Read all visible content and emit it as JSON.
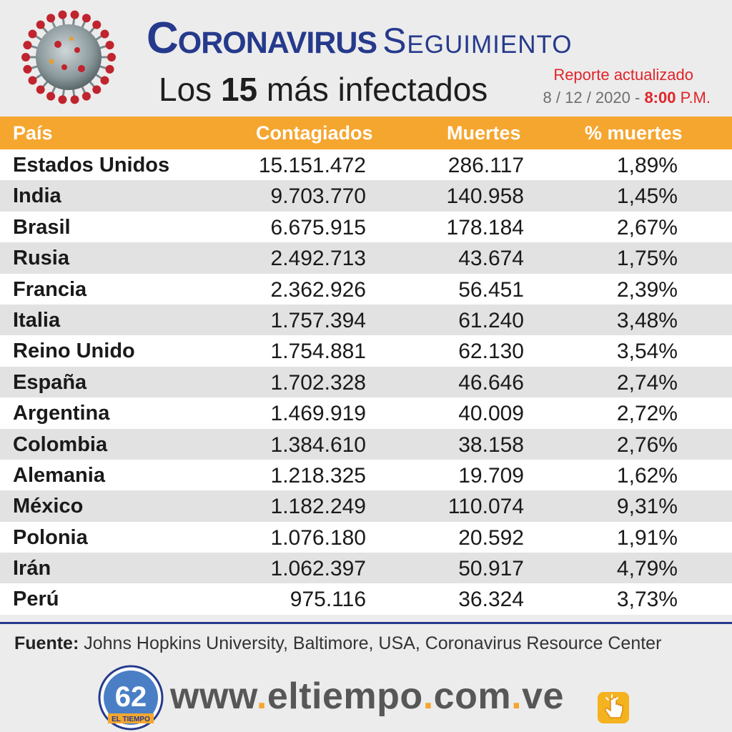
{
  "header": {
    "title_part1": "Coronavirus",
    "title_part2": "Seguimiento",
    "subtitle_part1": "Los ",
    "subtitle_number": "15",
    "subtitle_part2": " más infectados",
    "report_label": "Reporte actualizado",
    "date": "8 / 12 / 2020 -",
    "time": "8:00",
    "ampm": "P.M."
  },
  "table": {
    "columns": [
      "País",
      "Contagiados",
      "Muertes",
      "% muertes"
    ],
    "rows": [
      [
        "Estados Unidos",
        "15.151.472",
        "286.117",
        "1,89%"
      ],
      [
        "India",
        "9.703.770",
        "140.958",
        "1,45%"
      ],
      [
        "Brasil",
        "6.675.915",
        "178.184",
        "2,67%"
      ],
      [
        "Rusia",
        "2.492.713",
        "43.674",
        "1,75%"
      ],
      [
        "Francia",
        "2.362.926",
        "56.451",
        "2,39%"
      ],
      [
        "Italia",
        "1.757.394",
        "61.240",
        "3,48%"
      ],
      [
        "Reino Unido",
        "1.754.881",
        "62.130",
        "3,54%"
      ],
      [
        "España",
        "1.702.328",
        "46.646",
        "2,74%"
      ],
      [
        "Argentina",
        "1.469.919",
        "40.009",
        "2,72%"
      ],
      [
        "Colombia",
        "1.384.610",
        "38.158",
        "2,76%"
      ],
      [
        "Alemania",
        "1.218.325",
        "19.709",
        "1,62%"
      ],
      [
        "México",
        "1.182.249",
        "110.074",
        "9,31%"
      ],
      [
        "Polonia",
        "1.076.180",
        "20.592",
        "1,91%"
      ],
      [
        "Irán",
        "1.062.397",
        "50.917",
        "4,79%"
      ],
      [
        "Perú",
        "975.116",
        "36.324",
        "3,73%"
      ]
    ]
  },
  "footer": {
    "source_label": "Fuente:",
    "source_text": " Johns Hopkins University, Baltimore, USA, Coronavirus Resource Center",
    "logo_text": "EL TIEMPO",
    "logo_number": "62",
    "website_parts": [
      "www",
      ".",
      "eltiempo",
      ".",
      "com",
      ".",
      "ve"
    ]
  },
  "colors": {
    "header_bar": "#f5a62f",
    "title_blue": "#263a8c",
    "accent_red": "#e0242a",
    "row_alt": "#e2e2e2"
  },
  "icons": {
    "virus": "coronavirus-illustration",
    "logo": "el-tiempo-62-logo",
    "click": "click-hand-icon"
  }
}
